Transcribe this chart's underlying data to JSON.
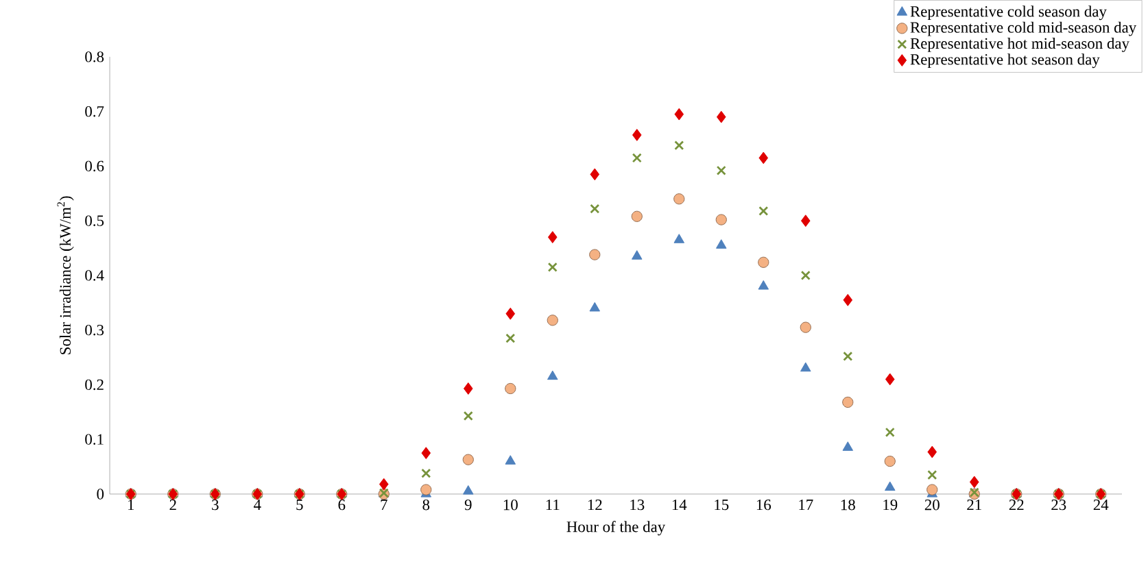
{
  "chart_data": {
    "type": "scatter",
    "xlabel": "Hour of the day",
    "ylabel": "Solar irradiance (kW/m$^{2}$)",
    "categories": [
      "1",
      "2",
      "3",
      "4",
      "5",
      "6",
      "7",
      "8",
      "9",
      "10",
      "11",
      "12",
      "13",
      "14",
      "15",
      "16",
      "17",
      "18",
      "19",
      "20",
      "21",
      "22",
      "23",
      "24"
    ],
    "ylim": [
      0,
      0.8
    ],
    "yticks": [
      {
        "value": 0,
        "label": "0"
      },
      0.1,
      0.2,
      0.3,
      0.4,
      0.5,
      0.6,
      0.7,
      0.8
    ],
    "legend": "top right",
    "series": [
      {
        "name": "Representative cold season day",
        "color": "#4f81bd",
        "marker": "triangle",
        "values": [
          0,
          0,
          0,
          0,
          0,
          0,
          0,
          0,
          0.005,
          0.06,
          0.215,
          0.34,
          0.435,
          0.465,
          0.455,
          0.38,
          0.23,
          0.085,
          0.012,
          0,
          0,
          0,
          0,
          0
        ]
      },
      {
        "name": "Representative cold mid-season day",
        "color": "#f4b183",
        "marker": "circle",
        "values": [
          0,
          0,
          0,
          0,
          0,
          0,
          0,
          0.008,
          0.063,
          0.193,
          0.318,
          0.438,
          0.508,
          0.54,
          0.502,
          0.424,
          0.305,
          0.168,
          0.06,
          0.008,
          0,
          0,
          0,
          0
        ]
      },
      {
        "name": "Representative hot mid-season day",
        "color": "#77933c",
        "marker": "cross",
        "values": [
          0,
          0,
          0,
          0,
          0,
          0,
          0.002,
          0.038,
          0.143,
          0.285,
          0.415,
          0.522,
          0.615,
          0.638,
          0.592,
          0.518,
          0.4,
          0.252,
          0.113,
          0.035,
          0.003,
          0,
          0,
          0
        ]
      },
      {
        "name": "Representative hot season day",
        "color": "#e00000",
        "marker": "diamond",
        "values": [
          0,
          0,
          0,
          0,
          0,
          0,
          0.018,
          0.075,
          0.193,
          0.33,
          0.47,
          0.585,
          0.657,
          0.695,
          0.69,
          0.615,
          0.5,
          0.355,
          0.21,
          0.077,
          0.022,
          0,
          0,
          0
        ]
      }
    ]
  }
}
